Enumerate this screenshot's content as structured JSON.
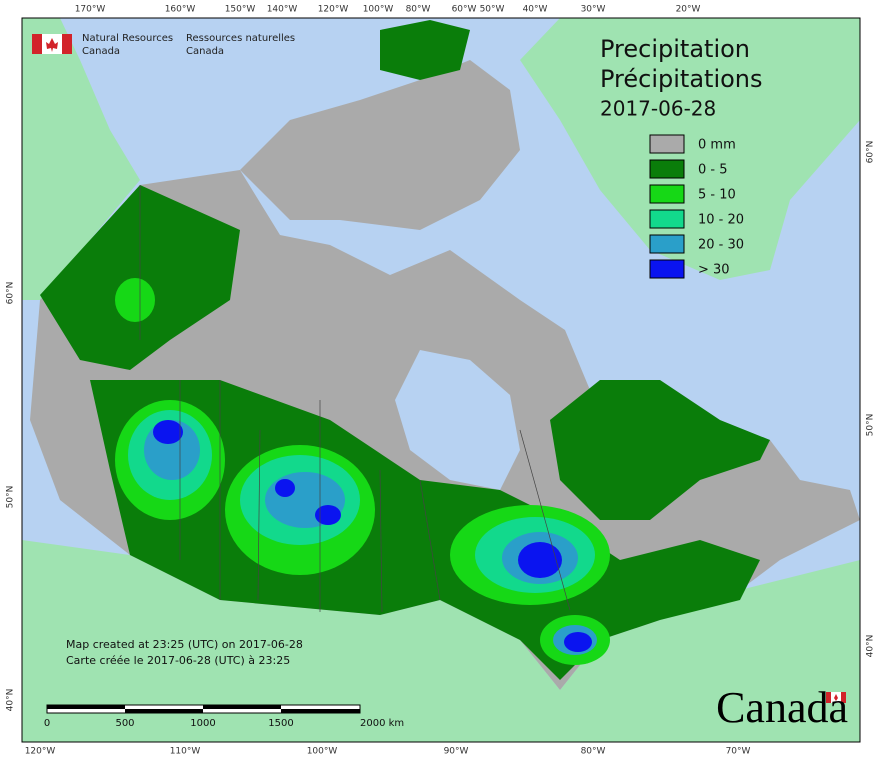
{
  "header": {
    "agency_en": [
      "Natural Resources",
      "Canada"
    ],
    "agency_fr": [
      "Ressources naturelles",
      "Canada"
    ]
  },
  "title": {
    "en": "Precipitation",
    "fr": "Précipitations",
    "date": "2017-06-28"
  },
  "legend": {
    "items": [
      {
        "label": "0 mm",
        "color": "#aaaaaa"
      },
      {
        "label": "0 - 5",
        "color": "#0a7d0a"
      },
      {
        "label": "5 - 10",
        "color": "#16d816"
      },
      {
        "label": "10 - 20",
        "color": "#12d98c"
      },
      {
        "label": "20 - 30",
        "color": "#2a9fc9"
      },
      {
        "label": "> 30",
        "color": "#0a14f0"
      }
    ]
  },
  "graticule": {
    "top": [
      "170°W",
      "160°W",
      "150°W",
      "140°W",
      "120°W",
      "100°W",
      "80°W",
      "60°W",
      "50°W",
      "40°W",
      "30°W",
      "20°W"
    ],
    "bottom": [
      "120°W",
      "110°W",
      "100°W",
      "90°W",
      "80°W",
      "70°W"
    ],
    "left": [
      "60°N",
      "50°N",
      "40°N"
    ],
    "right": [
      "60°N",
      "50°N",
      "40°N"
    ]
  },
  "notes": [
    "Map created at 23:25 (UTC) on 2017-06-28",
    "Carte créée le 2017-06-28 (UTC) à 23:25"
  ],
  "scale_bar": [
    "0",
    "500",
    "1000",
    "1500",
    "2000 km"
  ],
  "wordmark": "Canada"
}
